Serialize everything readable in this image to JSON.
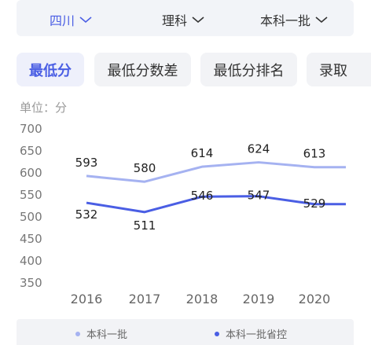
{
  "filters": {
    "province": "四川",
    "subject": "理科",
    "batch": "本科一批"
  },
  "tabs": [
    "最低分",
    "最低分数差",
    "最低分排名",
    "录取"
  ],
  "unit_label": "单位：分",
  "colors": {
    "accent": "#4a5ee4",
    "series1": "#a5b2f1",
    "series2": "#4a5ee4"
  },
  "chart_data": {
    "type": "line",
    "x": [
      "2016",
      "2017",
      "2018",
      "2019",
      "2020"
    ],
    "y_ticks": [
      "700",
      "650",
      "600",
      "550",
      "500",
      "450",
      "400",
      "350"
    ],
    "ylim": [
      350,
      700
    ],
    "grid": false,
    "legend_position": "bottom",
    "series": [
      {
        "name": "本科一批",
        "values": [
          593,
          580,
          614,
          624,
          613
        ],
        "labels": [
          "593",
          "580",
          "614",
          "624",
          "613"
        ]
      },
      {
        "name": "本科一批省控",
        "values": [
          532,
          511,
          546,
          547,
          529
        ],
        "labels": [
          "532",
          "511",
          "546",
          "547",
          "529"
        ]
      }
    ]
  }
}
